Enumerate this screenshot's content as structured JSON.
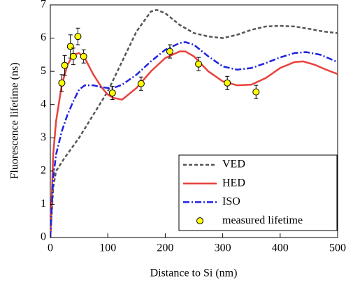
{
  "chart_data": {
    "type": "line",
    "x_label": "Distance to Si (nm)",
    "y_label": "Fluorescence lifetime (ns)",
    "xlim": [
      0,
      500
    ],
    "ylim": [
      0,
      7
    ],
    "xticks": [
      0,
      100,
      200,
      300,
      400,
      500
    ],
    "yticks": [
      0,
      1,
      2,
      3,
      4,
      5,
      6,
      7
    ],
    "legend": "lower right",
    "series": [
      {
        "name": "VED",
        "color": "#555555",
        "linestyle": "dashed",
        "x": [
          0,
          5,
          10,
          25,
          50,
          75,
          100,
          125,
          150,
          175,
          185,
          200,
          225,
          250,
          275,
          300,
          325,
          350,
          375,
          400,
          425,
          450,
          475,
          500
        ],
        "values": [
          0,
          1.5,
          2.0,
          2.4,
          3.0,
          3.7,
          4.4,
          5.3,
          6.2,
          6.8,
          6.85,
          6.75,
          6.4,
          6.15,
          6.05,
          6.0,
          6.1,
          6.25,
          6.35,
          6.37,
          6.35,
          6.28,
          6.2,
          6.15
        ]
      },
      {
        "name": "HED",
        "color": "#e8413c",
        "linestyle": "solid",
        "x": [
          0,
          5,
          10,
          20,
          30,
          40,
          50,
          60,
          75,
          90,
          100,
          110,
          125,
          150,
          175,
          200,
          225,
          235,
          250,
          275,
          300,
          325,
          350,
          375,
          400,
          425,
          440,
          460,
          480,
          500
        ],
        "values": [
          0,
          2.5,
          3.5,
          4.6,
          5.2,
          5.5,
          5.55,
          5.4,
          4.9,
          4.5,
          4.3,
          4.2,
          4.15,
          4.5,
          5.0,
          5.4,
          5.6,
          5.6,
          5.45,
          5.0,
          4.7,
          4.58,
          4.6,
          4.8,
          5.1,
          5.28,
          5.3,
          5.2,
          5.05,
          4.92
        ]
      },
      {
        "name": "ISO",
        "color": "#1f22e0",
        "linestyle": "dashdot",
        "x": [
          0,
          5,
          10,
          20,
          30,
          40,
          50,
          60,
          75,
          90,
          100,
          110,
          125,
          150,
          175,
          200,
          225,
          235,
          250,
          275,
          300,
          325,
          350,
          375,
          400,
          425,
          445,
          470,
          500
        ],
        "values": [
          0,
          1.8,
          2.5,
          3.2,
          3.7,
          4.1,
          4.45,
          4.58,
          4.58,
          4.52,
          4.5,
          4.5,
          4.6,
          4.9,
          5.3,
          5.65,
          5.85,
          5.88,
          5.8,
          5.45,
          5.15,
          5.05,
          5.1,
          5.25,
          5.42,
          5.55,
          5.58,
          5.5,
          5.28
        ]
      },
      {
        "name": "measured lifetime",
        "color": "#ffff00",
        "type": "scatter",
        "x": [
          20,
          25,
          35,
          40,
          48,
          58,
          108,
          158,
          208,
          258,
          308,
          358
        ],
        "values": [
          4.65,
          5.18,
          5.75,
          5.45,
          6.05,
          5.45,
          4.35,
          4.63,
          5.6,
          5.22,
          4.65,
          4.38
        ],
        "x_err": [
          5,
          5,
          5,
          5,
          5,
          5,
          5,
          5,
          5,
          5,
          5,
          5
        ],
        "y_err": [
          0.25,
          0.3,
          0.35,
          0.25,
          0.25,
          0.2,
          0.2,
          0.2,
          0.2,
          0.2,
          0.2,
          0.2
        ]
      }
    ]
  }
}
